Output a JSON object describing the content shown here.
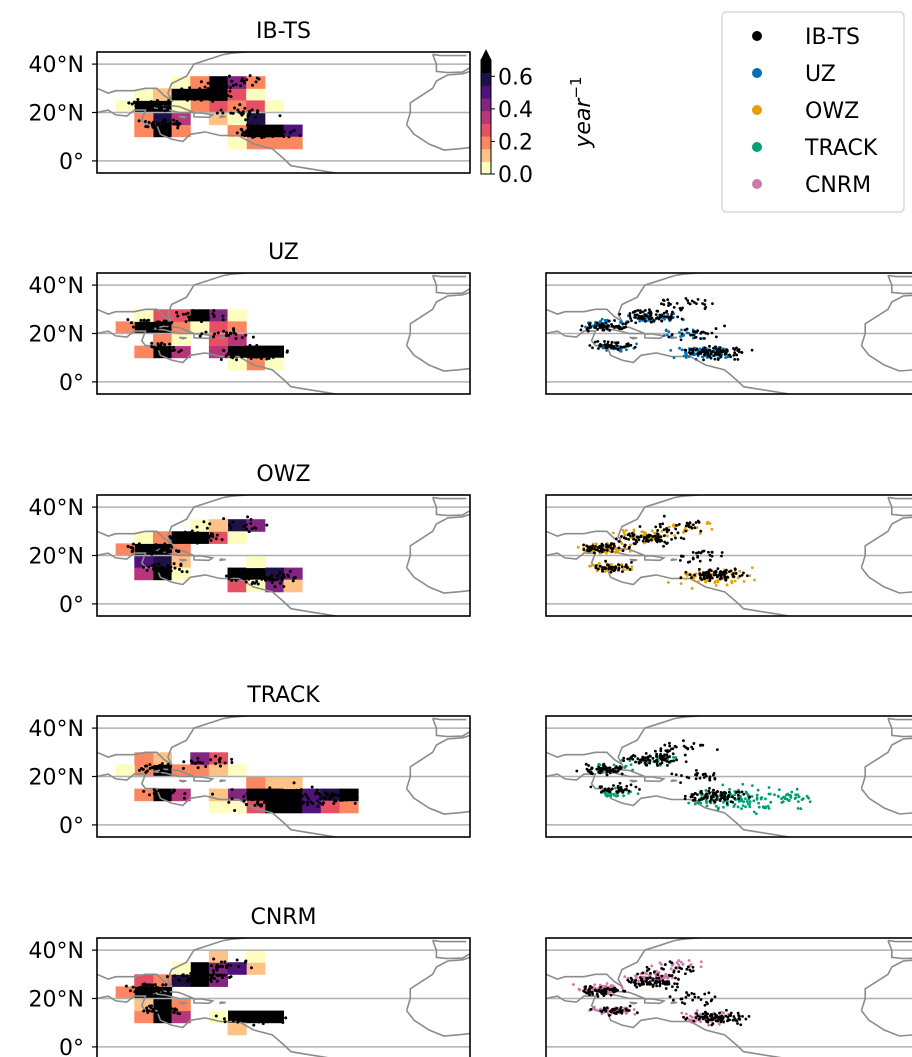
{
  "panels": [
    {
      "title": "IB-TS",
      "key": "ibts"
    },
    {
      "title": "UZ",
      "key": "uz"
    },
    {
      "title": "OWZ",
      "key": "owz"
    },
    {
      "title": "TRACK",
      "key": "track"
    },
    {
      "title": "CNRM",
      "key": "cnrm"
    }
  ],
  "lat_ticks": [
    "40°N",
    "20°N",
    "0°"
  ],
  "lat_values": [
    40,
    20,
    0
  ],
  "colorbar": {
    "label": "year",
    "label_exponent": "−1",
    "ticks": [
      "0.6",
      "0.4",
      "0.2",
      "0.0"
    ],
    "tick_values": [
      0.6,
      0.4,
      0.2,
      0.0
    ],
    "vmin": 0.0,
    "vmax": 0.7,
    "extend": "max",
    "colors": [
      "#fcfdbf",
      "#fec287",
      "#fb8761",
      "#e55064",
      "#b5367a",
      "#812581",
      "#4f127b",
      "#1d1147",
      "#000004"
    ]
  },
  "legend": {
    "entries": [
      {
        "label": "IB-TS",
        "color": "#000000"
      },
      {
        "label": "UZ",
        "color": "#0072b2"
      },
      {
        "label": "OWZ",
        "color": "#e69f00"
      },
      {
        "label": "TRACK",
        "color": "#009e73"
      },
      {
        "label": "CNRM",
        "color": "#cc79a7"
      }
    ]
  },
  "map_extent": {
    "lon": [
      -100,
      0
    ],
    "lat": [
      -5,
      45
    ]
  }
}
